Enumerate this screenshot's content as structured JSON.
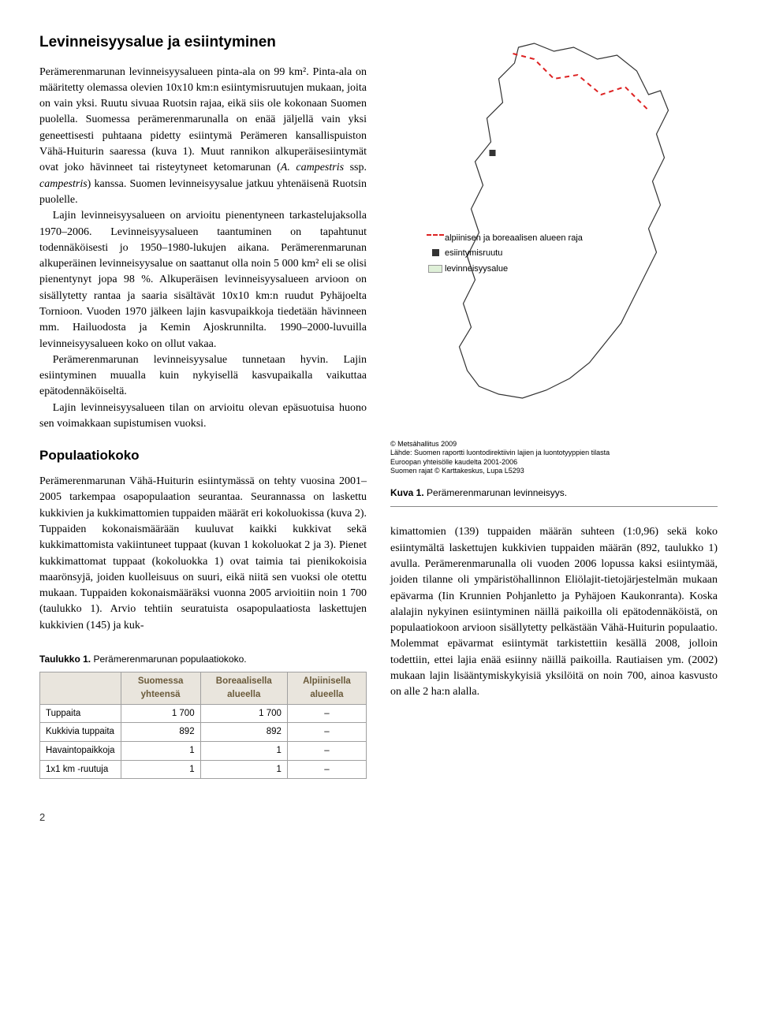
{
  "section1": {
    "heading": "Levinneisyysalue ja esiintyminen",
    "p1": "Perämerenmarunan levinneisyysalueen pinta-ala on 99 km². Pinta-ala on määritetty olemassa olevien 10x10 km:n esiintymisruutujen mukaan, joita on vain yksi. Ruutu sivuaa Ruotsin rajaa, eikä siis ole kokonaan Suomen puolella. Suomessa perämerenmarunalla on enää jäljellä vain yksi geneettisesti puhtaana pidetty esiintymä Perämeren kansallispuiston Vähä-Huiturin saaressa (kuva 1). Muut rannikon alkuperäisesiintymät ovat joko hävinneet tai risteytyneet ketomarunan (",
    "p1_i1": "A. campestris",
    "p1_mid": " ssp. ",
    "p1_i2": "campestris",
    "p1_end": ") kanssa. Suomen levinneisyysalue jatkuu yhtenäisenä Ruotsin puolelle.",
    "p2": "Lajin levinneisyysalueen on arvioitu pienentyneen tarkastelujaksolla 1970–2006. Levinneisyysalueen taantuminen on tapahtunut todennäköisesti jo 1950–1980-lukujen aikana. Perämerenmarunan alkuperäinen levinneisyysalue on saattanut olla noin 5 000 km² eli se olisi pienentynyt jopa 98 %. Alkuperäisen levinneisyysalueen arvioon on sisällytetty rantaa ja saaria sisältävät 10x10 km:n ruudut Pyhäjoelta Tornioon. Vuoden 1970 jälkeen lajin kasvupaikkoja tiedetään hävinneen mm. Hailuodosta ja Kemin Ajoskrunnilta. 1990–2000-luvuilla levinneisyysalueen koko on ollut vakaa.",
    "p3": "Perämerenmarunan levinneisyysalue tunnetaan hyvin. Lajin esiintyminen muualla kuin nykyisellä kasvupaikalla vaikuttaa epätodennäköiseltä.",
    "p4": "Lajin levinneisyysalueen tilan on arvioitu olevan epäsuotuisa huono sen voimakkaan supistumisen vuoksi."
  },
  "section2": {
    "heading": "Populaatiokoko",
    "p1": "Perämerenmarunan Vähä-Huiturin esiintymässä on tehty vuosina 2001–2005 tarkempaa osapopulaation seurantaa. Seurannassa on laskettu kukkivien ja kukkimattomien tuppaiden määrät eri kokoluokissa (kuva 2). Tuppaiden kokonaismäärään kuuluvat kaikki kukkivat sekä kukkimattomista vakiintuneet tuppaat (kuvan 1 kokoluokat 2 ja 3). Pienet kukkimattomat tuppaat (kokoluokka 1) ovat taimia tai pienikokoisia maarönsyjä, joiden kuolleisuus on suuri, eikä niitä sen vuoksi ole otettu mukaan. Tuppaiden kokonaismääräksi vuonna 2005 arvioitiin noin 1 700 (taulukko 1). Arvio tehtiin seuratuista osapopulaatiosta laskettujen kukkivien (145) ja kuk-"
  },
  "rightText": {
    "p1": "kimattomien (139) tuppaiden määrän suhteen (1:0,96) sekä koko esiintymältä laskettujen kukkivien tuppaiden määrän (892, taulukko 1) avulla. Perämerenmarunalla oli vuoden 2006 lopussa kaksi esiintymää, joiden tilanne oli ympäristöhallinnon Eliölajit-tietojärjestelmän mukaan epävarma (Iin Krunnien Pohjanletto ja Pyhäjoen Kaukonranta). Koska alalajin nykyinen esiintyminen näillä paikoilla oli epätodennäköistä, on populaatiokoon arvioon sisällytetty pelkästään Vähä-Huiturin populaatio. Molemmat epävarmat esiintymät tarkistettiin kesällä 2008, jolloin todettiin, ettei lajia enää esiinny näillä paikoilla. Rautiaisen ym. (2002) mukaan lajin lisääntymiskykyisiä yksilöitä on noin 700, ainoa kasvusto on alle 2 ha:n alalla."
  },
  "map": {
    "legend1": "alpiinisen ja boreaalisen alueen raja",
    "legend2": "esiintymisruutu",
    "legend3": "levinneisyysalue",
    "credit1": "© Metsähallitus 2009",
    "credit2": "Lähde: Suomen raportti luontodirektiivin lajien ja luontotyyppien tilasta",
    "credit3": "Euroopan yhteisölle kaudelta 2001-2006",
    "credit4": "Suomen rajat © Karttakeskus, Lupa L5293",
    "caption_b": "Kuva 1.",
    "caption": " Perämerenmarunan levinneisyys."
  },
  "table": {
    "title_b": "Taulukko 1.",
    "title": " Perämerenmarunan populaatiokoko.",
    "headers": [
      "",
      "Suomessa yhteensä",
      "Boreaalisella alueella",
      "Alpiinisella alueella"
    ],
    "rows": [
      {
        "label": "Tuppaita",
        "c1": "1 700",
        "c2": "1 700",
        "c3": "–"
      },
      {
        "label": "Kukkivia tuppaita",
        "c1": "892",
        "c2": "892",
        "c3": "–"
      },
      {
        "label": "Havaintopaikkoja",
        "c1": "1",
        "c2": "1",
        "c3": "–"
      },
      {
        "label": "1x1 km -ruutuja",
        "c1": "1",
        "c2": "1",
        "c3": "–"
      }
    ]
  },
  "pageNumber": "2"
}
